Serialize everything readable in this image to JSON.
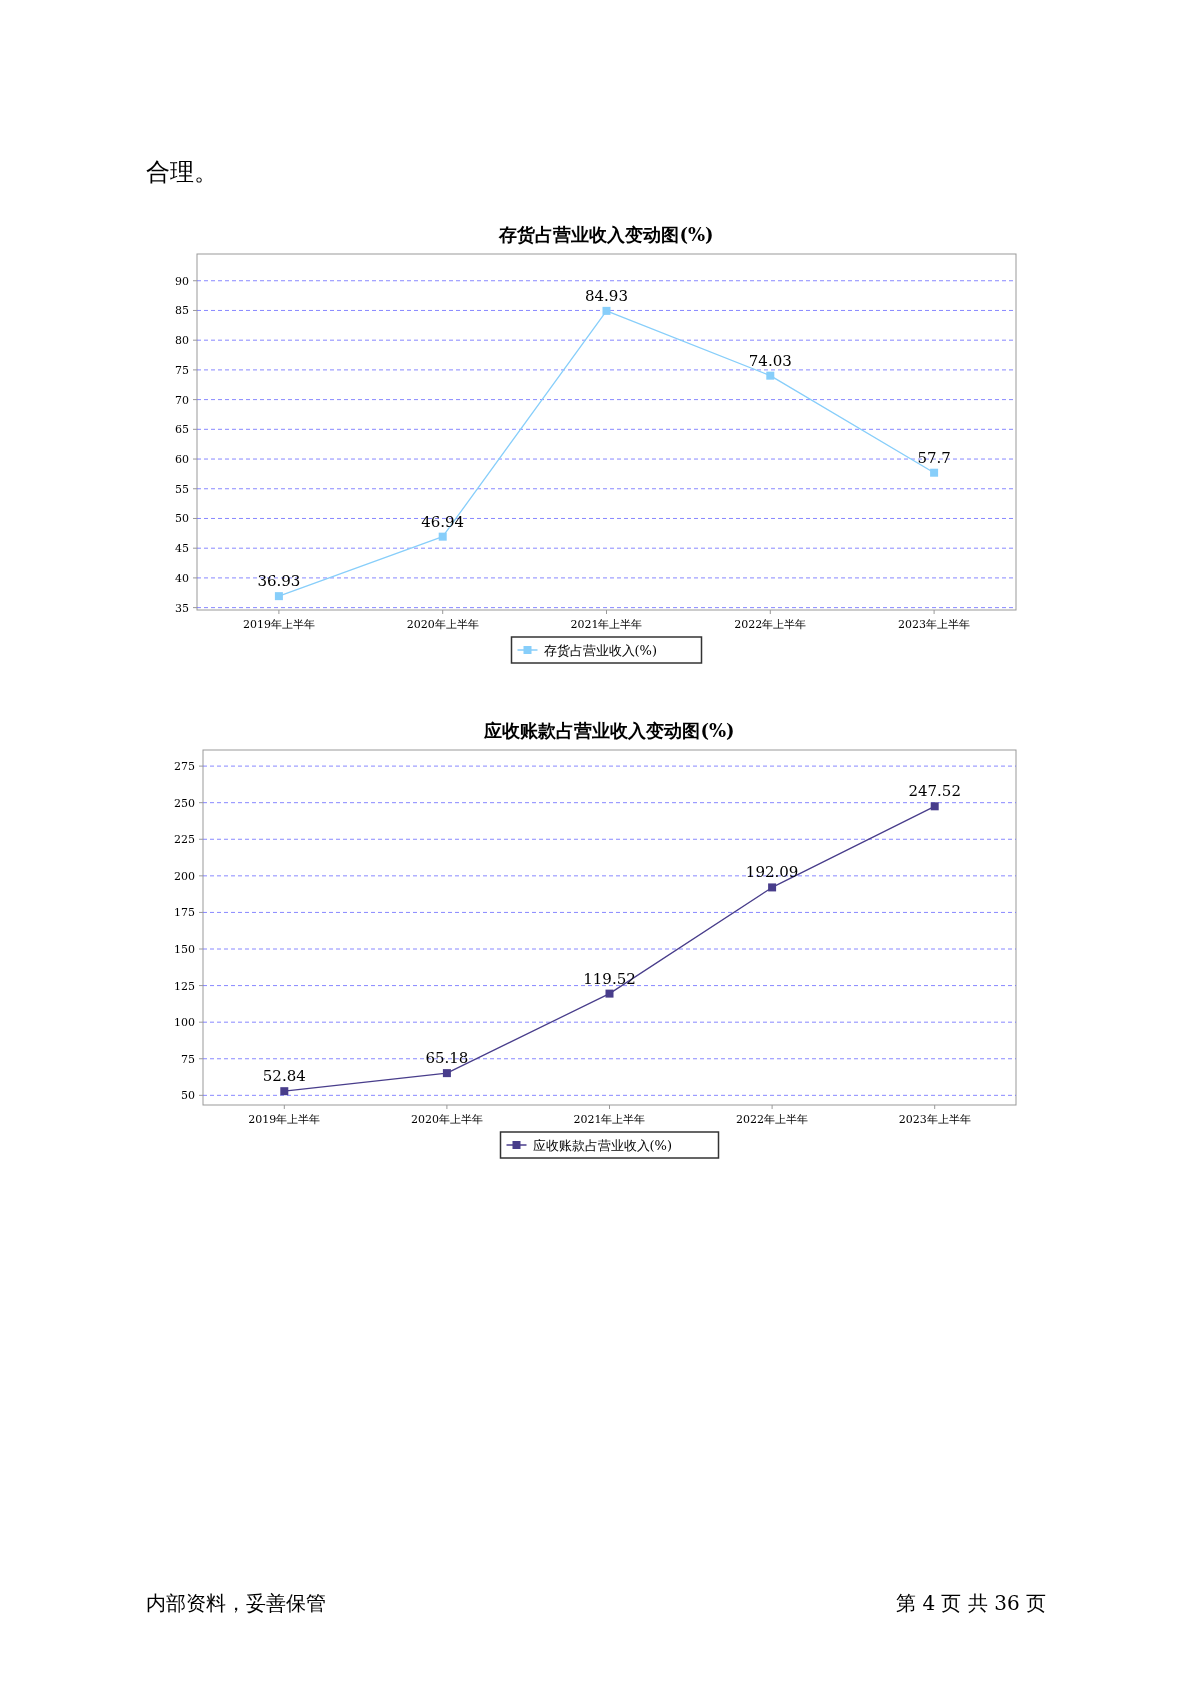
{
  "chart_data": [
    {
      "type": "line",
      "title": "存货占营业收入变动图(%)",
      "categories": [
        "2019年上半年",
        "2020年上半年",
        "2021年上半年",
        "2022年上半年",
        "2023年上半年"
      ],
      "series": [
        {
          "name": "存货占营业收入(%)",
          "color": "#87cefa",
          "values": [
            36.93,
            46.94,
            84.93,
            74.03,
            57.7
          ]
        }
      ],
      "ylim": [
        34.6,
        94.5
      ],
      "yticks": [
        35,
        40,
        45,
        50,
        55,
        60,
        65,
        70,
        75,
        80,
        85,
        90
      ],
      "grid": "y",
      "legend": "bottom",
      "marker": "square",
      "line_style": "solid",
      "data_labels": true,
      "annotations": [
        "合理。"
      ]
    },
    {
      "type": "line",
      "title": "应收账款占营业收入变动图(%)",
      "categories": [
        "2019年上半年",
        "2020年上半年",
        "2021年上半年",
        "2022年上半年",
        "2023年上半年"
      ],
      "series": [
        {
          "name": "应收账款占营业收入(%)",
          "color": "#483d8b",
          "values": [
            52.84,
            65.18,
            119.52,
            192.09,
            247.52
          ]
        }
      ],
      "ylim": [
        43.4,
        286
      ],
      "yticks": [
        50,
        75,
        100,
        125,
        150,
        175,
        200,
        225,
        250,
        275
      ],
      "grid": "y",
      "legend": "bottom",
      "marker": "square",
      "line_style": "solid",
      "data_labels": true,
      "annotations": [
        "内部资料，妥善保管",
        "第 4 页 共 36 页"
      ]
    }
  ]
}
